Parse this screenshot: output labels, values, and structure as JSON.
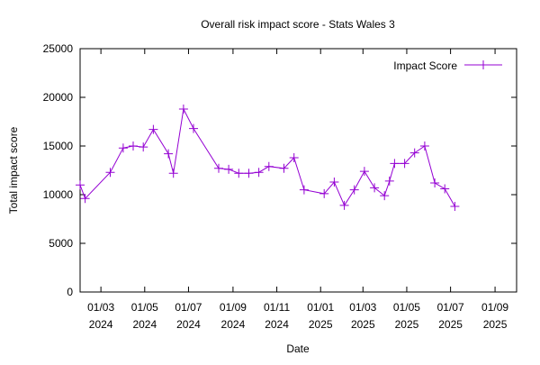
{
  "chart_data": {
    "type": "line",
    "title": "Overall risk impact score - Stats Wales 3",
    "xlabel": "Date",
    "ylabel": "Total impact score",
    "ylim": [
      0,
      25000
    ],
    "yticks": [
      0,
      5000,
      10000,
      15000,
      20000,
      25000
    ],
    "xlim": [
      "2024-02-01",
      "2025-10-01"
    ],
    "xticks": [
      {
        "date": "2024-03-01",
        "label": [
          "01/03",
          "2024"
        ]
      },
      {
        "date": "2024-05-01",
        "label": [
          "01/05",
          "2024"
        ]
      },
      {
        "date": "2024-07-01",
        "label": [
          "01/07",
          "2024"
        ]
      },
      {
        "date": "2024-09-01",
        "label": [
          "01/09",
          "2024"
        ]
      },
      {
        "date": "2024-11-01",
        "label": [
          "01/11",
          "2024"
        ]
      },
      {
        "date": "2025-01-01",
        "label": [
          "01/01",
          "2025"
        ]
      },
      {
        "date": "2025-03-01",
        "label": [
          "01/03",
          "2025"
        ]
      },
      {
        "date": "2025-05-01",
        "label": [
          "01/05",
          "2025"
        ]
      },
      {
        "date": "2025-07-01",
        "label": [
          "01/07",
          "2025"
        ]
      },
      {
        "date": "2025-09-01",
        "label": [
          "01/09",
          "2025"
        ]
      }
    ],
    "grid": false,
    "legend_position": "top-right",
    "series": [
      {
        "name": "Impact Score",
        "color": "#9400d3",
        "marker": "plus",
        "points": [
          {
            "x": "2024-02-01",
            "y": 11000
          },
          {
            "x": "2024-02-08",
            "y": 9600
          },
          {
            "x": "2024-03-14",
            "y": 12300
          },
          {
            "x": "2024-04-01",
            "y": 14800
          },
          {
            "x": "2024-04-15",
            "y": 15000
          },
          {
            "x": "2024-04-29",
            "y": 14900
          },
          {
            "x": "2024-05-13",
            "y": 16700
          },
          {
            "x": "2024-06-03",
            "y": 14200
          },
          {
            "x": "2024-06-10",
            "y": 12200
          },
          {
            "x": "2024-06-24",
            "y": 18800
          },
          {
            "x": "2024-07-08",
            "y": 16800
          },
          {
            "x": "2024-08-12",
            "y": 12700
          },
          {
            "x": "2024-08-26",
            "y": 12600
          },
          {
            "x": "2024-09-09",
            "y": 12200
          },
          {
            "x": "2024-09-23",
            "y": 12200
          },
          {
            "x": "2024-10-07",
            "y": 12300
          },
          {
            "x": "2024-10-21",
            "y": 12900
          },
          {
            "x": "2024-11-11",
            "y": 12700
          },
          {
            "x": "2024-11-25",
            "y": 13800
          },
          {
            "x": "2024-12-09",
            "y": 10500
          },
          {
            "x": "2025-01-06",
            "y": 10100
          },
          {
            "x": "2025-01-20",
            "y": 11300
          },
          {
            "x": "2025-02-03",
            "y": 8900
          },
          {
            "x": "2025-02-17",
            "y": 10500
          },
          {
            "x": "2025-03-03",
            "y": 12400
          },
          {
            "x": "2025-03-17",
            "y": 10700
          },
          {
            "x": "2025-03-31",
            "y": 9900
          },
          {
            "x": "2025-04-07",
            "y": 11400
          },
          {
            "x": "2025-04-14",
            "y": 13200
          },
          {
            "x": "2025-04-28",
            "y": 13200
          },
          {
            "x": "2025-05-12",
            "y": 14300
          },
          {
            "x": "2025-05-26",
            "y": 15000
          },
          {
            "x": "2025-06-09",
            "y": 11200
          },
          {
            "x": "2025-06-23",
            "y": 10600
          },
          {
            "x": "2025-07-07",
            "y": 8800
          }
        ]
      }
    ]
  }
}
